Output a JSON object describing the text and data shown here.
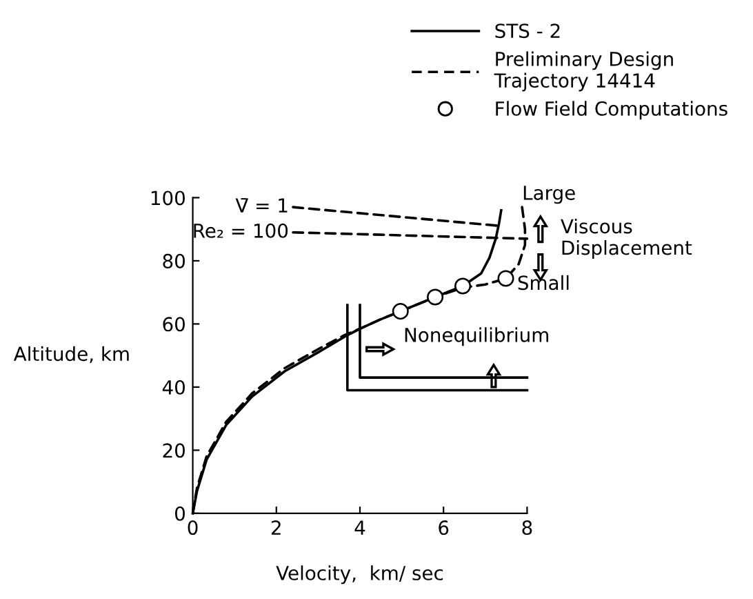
{
  "chart_data": {
    "type": "line",
    "xlabel": "Velocity,  km/ sec",
    "ylabel": "Altitude, km",
    "xlim": [
      0,
      8
    ],
    "ylim": [
      0,
      100
    ],
    "xticks": [
      0,
      2,
      4,
      6,
      8
    ],
    "yticks": [
      0,
      20,
      40,
      60,
      80,
      100
    ],
    "grid": false,
    "legend": "top right",
    "series": [
      {
        "name": "STS - 2",
        "line_style": "solid",
        "color": "#000000",
        "x": [
          0,
          0.1,
          0.33,
          0.8,
          1.42,
          2.2,
          3.0,
          3.64,
          4.0,
          4.5,
          4.97,
          5.8,
          6.46,
          6.9,
          7.1,
          7.25,
          7.33,
          7.38
        ],
        "values": [
          0,
          7,
          17,
          28,
          37,
          45,
          51,
          56,
          58.5,
          61.5,
          64,
          68.5,
          72,
          76,
          81,
          87,
          92,
          96
        ]
      },
      {
        "name": "Preliminary Design\nTrajectory 14414",
        "line_style": "dashed",
        "color": "#000000",
        "x": [
          0,
          0.1,
          0.33,
          0.8,
          1.42,
          2.2,
          3.0,
          3.64,
          4.0,
          4.5,
          4.97,
          5.8,
          6.46,
          7.0,
          7.49,
          7.8,
          7.95,
          7.95,
          7.88
        ],
        "values": [
          0,
          8,
          18,
          29,
          38,
          46,
          52,
          56.5,
          58.5,
          61.5,
          64,
          68.5,
          71.5,
          72.5,
          74.4,
          79,
          85,
          90,
          97
        ]
      },
      {
        "name": "Flow Field Computations",
        "type": "scatter",
        "marker": "circle",
        "color": "#000000",
        "x": [
          4.97,
          5.8,
          6.46,
          7.49
        ],
        "values": [
          64,
          68.5,
          72,
          74.4
        ]
      },
      {
        "line_style": "dashed",
        "color": "#000000",
        "x": [
          2.4,
          7.4
        ],
        "values": [
          97,
          91
        ]
      },
      {
        "line_style": "dashed",
        "color": "#000000",
        "x": [
          2.4,
          8.0
        ],
        "values": [
          89,
          87
        ]
      },
      {
        "line_style": "solid",
        "color": "#000000",
        "x": [
          4.0,
          4.0,
          8.0
        ],
        "values": [
          66,
          43,
          43
        ]
      },
      {
        "line_style": "solid",
        "color": "#000000",
        "x": [
          3.7,
          3.7,
          8.0
        ],
        "values": [
          66,
          39,
          39
        ]
      }
    ],
    "annotations": [
      {
        "text": "V̄ = 1",
        "x": 2.4,
        "y": 97
      },
      {
        "text": "Re₂ = 100",
        "x": 2.4,
        "y": 89
      },
      "Nonequilibrium",
      "Large",
      "Viscous\nDisplacement",
      "Small"
    ]
  }
}
